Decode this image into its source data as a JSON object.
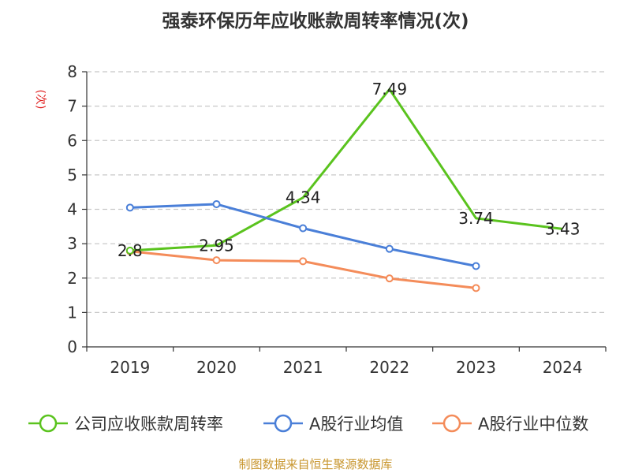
{
  "chart_data": {
    "type": "line",
    "title": "强泰环保历年应收账款周转率情况(次)",
    "xlabel": "",
    "ylabel": "(次)",
    "categories": [
      "2019",
      "2020",
      "2021",
      "2022",
      "2023",
      "2024"
    ],
    "ylim": [
      0,
      8
    ],
    "yticks": [
      "0",
      "1",
      "2",
      "3",
      "4",
      "5",
      "6",
      "7",
      "8"
    ],
    "grid": true,
    "legend_position": "bottom",
    "series": [
      {
        "name": "公司应收账款周转率",
        "color": "#5ac31e",
        "values": [
          2.8,
          2.95,
          4.34,
          7.49,
          3.74,
          3.43
        ],
        "labels": [
          "2.8",
          "2.95",
          "4.34",
          "7.49",
          "3.74",
          "3.43"
        ]
      },
      {
        "name": "A股行业均值",
        "color": "#4a7fd8",
        "values": [
          4.05,
          4.15,
          3.45,
          2.85,
          2.35,
          null
        ]
      },
      {
        "name": "A股行业中位数",
        "color": "#f48c5a",
        "values": [
          2.78,
          2.52,
          2.49,
          1.99,
          1.71,
          null
        ]
      }
    ]
  },
  "colors": {
    "ylabel": "#e02020",
    "source": "#c8962e",
    "axis": "#333333",
    "grid": "#c8c8c8"
  },
  "source_text": "制图数据来自恒生聚源数据库"
}
